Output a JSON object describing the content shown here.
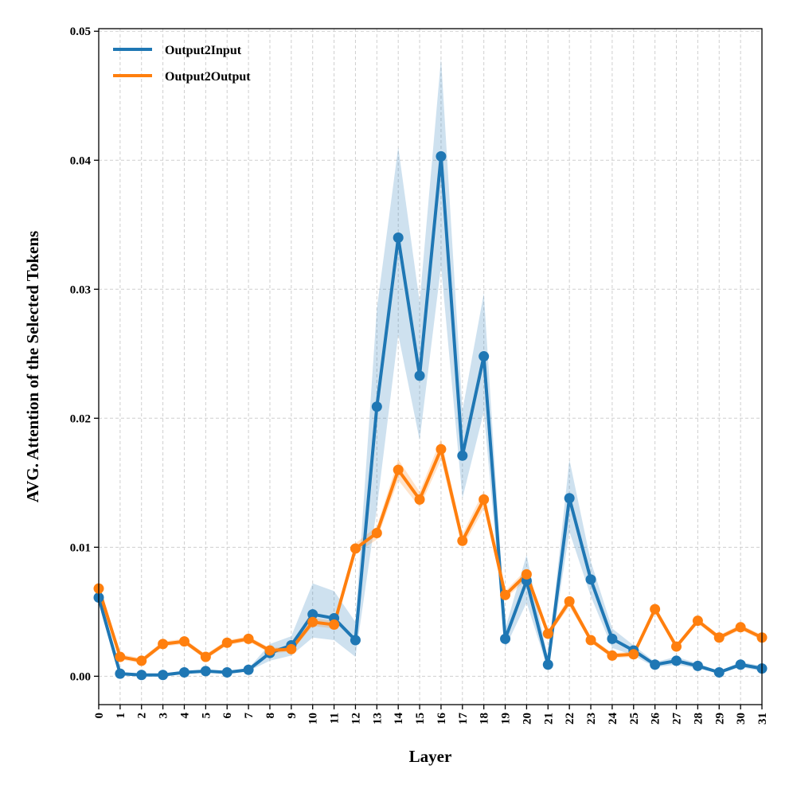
{
  "chart_data": {
    "type": "line",
    "title": "",
    "xlabel": "Layer",
    "ylabel": "AVG. Attention of the Selected Tokens",
    "xlim": [
      0,
      31
    ],
    "ylim": [
      -0.0022,
      0.0502
    ],
    "x": [
      0,
      1,
      2,
      3,
      4,
      5,
      6,
      7,
      8,
      9,
      10,
      11,
      12,
      13,
      14,
      15,
      16,
      17,
      18,
      19,
      20,
      21,
      22,
      23,
      24,
      25,
      26,
      27,
      28,
      29,
      30,
      31
    ],
    "x_tick_labels": [
      "0",
      "1",
      "2",
      "3",
      "4",
      "5",
      "6",
      "7",
      "8",
      "9",
      "10",
      "11",
      "12",
      "13",
      "14",
      "15",
      "16",
      "17",
      "18",
      "19",
      "20",
      "21",
      "22",
      "23",
      "24",
      "25",
      "26",
      "27",
      "28",
      "29",
      "30",
      "31"
    ],
    "y_ticks": [
      0.0,
      0.01,
      0.02,
      0.03,
      0.04,
      0.05
    ],
    "y_tick_labels": [
      "0.00",
      "0.01",
      "0.02",
      "0.03",
      "0.04",
      "0.05"
    ],
    "grid": true,
    "legend_position": "top-left",
    "series": [
      {
        "name": "Output2Input",
        "color": "#1f77b4",
        "values": [
          0.0061,
          0.0002,
          0.0001,
          0.0001,
          0.0003,
          0.0004,
          0.0003,
          0.0005,
          0.0018,
          0.0024,
          0.0048,
          0.0045,
          0.0028,
          0.0209,
          0.034,
          0.0233,
          0.0403,
          0.0171,
          0.0248,
          0.0029,
          0.0074,
          0.0009,
          0.0138,
          0.0075,
          0.0029,
          0.002,
          0.0009,
          0.0012,
          0.0008,
          0.0003,
          0.0009,
          0.0006
        ],
        "band_lower": [
          0.0058,
          0.0001,
          0.0,
          0.0,
          0.0002,
          0.0003,
          0.0002,
          0.0004,
          0.0012,
          0.0016,
          0.003,
          0.0028,
          0.0015,
          0.013,
          0.0265,
          0.0183,
          0.0318,
          0.0138,
          0.0205,
          0.0022,
          0.0057,
          0.0005,
          0.0112,
          0.0062,
          0.0022,
          0.0016,
          0.0007,
          0.0009,
          0.0006,
          0.0002,
          0.0007,
          0.0004
        ],
        "band_upper": [
          0.0064,
          0.0003,
          0.0002,
          0.0002,
          0.0004,
          0.0005,
          0.0004,
          0.0006,
          0.0025,
          0.0031,
          0.0072,
          0.0066,
          0.0042,
          0.0285,
          0.041,
          0.029,
          0.0479,
          0.0206,
          0.0297,
          0.0037,
          0.0094,
          0.0013,
          0.0168,
          0.0089,
          0.0037,
          0.0024,
          0.0011,
          0.0015,
          0.001,
          0.0004,
          0.0011,
          0.0008
        ]
      },
      {
        "name": "Output2Output",
        "color": "#ff7f0e",
        "values": [
          0.0068,
          0.0015,
          0.0012,
          0.0025,
          0.0027,
          0.0015,
          0.0026,
          0.0029,
          0.002,
          0.0021,
          0.0042,
          0.004,
          0.0099,
          0.0111,
          0.016,
          0.0137,
          0.0176,
          0.0105,
          0.0137,
          0.0063,
          0.0079,
          0.0033,
          0.0058,
          0.0028,
          0.0016,
          0.0017,
          0.0052,
          0.0023,
          0.0043,
          0.003,
          0.0038,
          0.003
        ],
        "band_lower": [
          0.0066,
          0.0013,
          0.001,
          0.0023,
          0.0025,
          0.0013,
          0.0024,
          0.0027,
          0.0018,
          0.0019,
          0.0039,
          0.0037,
          0.0095,
          0.0106,
          0.0152,
          0.0131,
          0.0168,
          0.01,
          0.013,
          0.006,
          0.0075,
          0.0031,
          0.0054,
          0.0026,
          0.0014,
          0.0015,
          0.005,
          0.0021,
          0.0041,
          0.0028,
          0.0036,
          0.0028
        ],
        "band_upper": [
          0.007,
          0.0017,
          0.0014,
          0.0027,
          0.0029,
          0.0017,
          0.0028,
          0.0031,
          0.0022,
          0.0023,
          0.0045,
          0.0043,
          0.0103,
          0.0116,
          0.0168,
          0.0143,
          0.0184,
          0.011,
          0.0144,
          0.0066,
          0.0083,
          0.0035,
          0.0062,
          0.003,
          0.0018,
          0.0019,
          0.0054,
          0.0025,
          0.0045,
          0.0032,
          0.004,
          0.0032
        ]
      }
    ]
  }
}
